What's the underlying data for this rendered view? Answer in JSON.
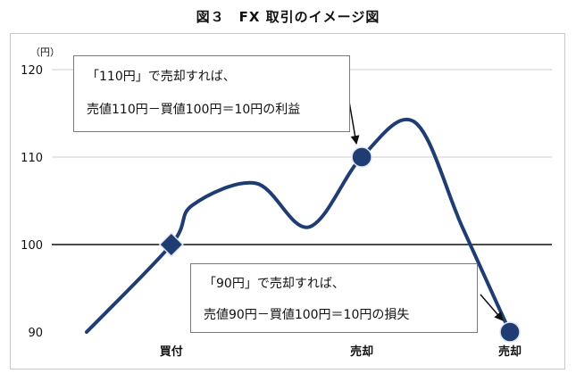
{
  "title": "図３　FX 取引のイメージ図",
  "chart_data": {
    "type": "line",
    "title": "図３　FX 取引のイメージ図",
    "y_unit": "（円）",
    "ylim": [
      90,
      120
    ],
    "yticks": [
      90,
      100,
      110,
      120
    ],
    "grid": true,
    "reference_line": 100,
    "series": [
      {
        "x": [
          0,
          0.8,
          1.0,
          1.6,
          2.1,
          2.6,
          3.1,
          3.55,
          4.0
        ],
        "values": [
          90,
          100,
          104.5,
          107,
          102,
          110,
          114,
          102,
          90
        ]
      }
    ],
    "markers": [
      {
        "label": "買付",
        "x": 0.8,
        "y": 100,
        "shape": "diamond"
      },
      {
        "label": "売却",
        "x": 2.6,
        "y": 110,
        "shape": "circle"
      },
      {
        "label": "売却",
        "x": 4.0,
        "y": 90,
        "shape": "circle"
      }
    ],
    "line_color": "#1f3d73",
    "grid_color": "#cfcfcf"
  },
  "annotations": {
    "sell_at_110": {
      "line1": "「110円」で売却すれば、",
      "line2": "売値110円－買値100円＝10円の利益"
    },
    "sell_at_90": {
      "line1": "「90円」で売却すれば、",
      "line2": "売値90円－買値100円＝10円の損失"
    }
  }
}
